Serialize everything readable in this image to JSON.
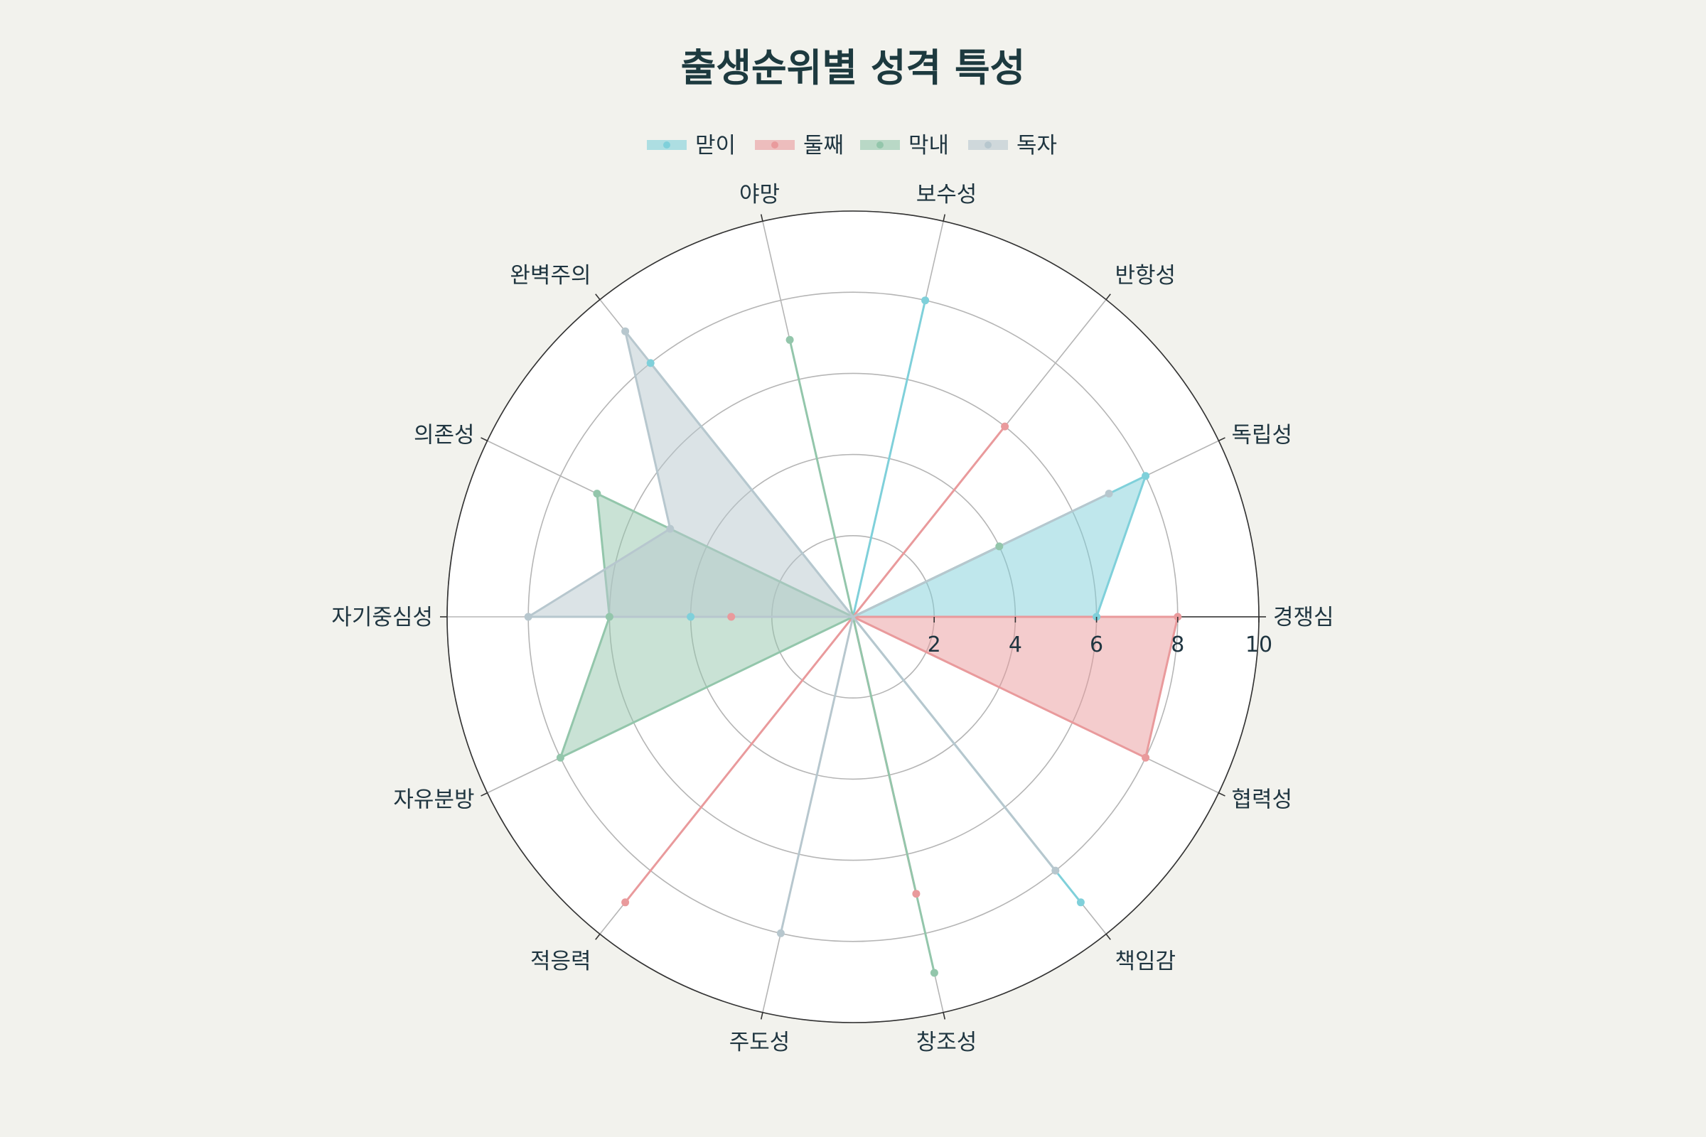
{
  "chart_data": {
    "type": "radar",
    "title": "출생순위별 성격 특성",
    "categories": [
      "경쟁심",
      "독립성",
      "반항성",
      "보수성",
      "야망",
      "완벽주의",
      "의존성",
      "자기중심성",
      "자유분방",
      "적응력",
      "주도성",
      "창조성",
      "책임감",
      "협력성"
    ],
    "radial_ticks": [
      "2",
      "4",
      "6",
      "8",
      "10"
    ],
    "rlim": [
      0,
      10
    ],
    "grid": true,
    "legend_position": "top-center",
    "series": [
      {
        "name": "맏이",
        "color": "#7fd0da",
        "values": [
          6,
          8,
          0,
          8,
          0,
          8,
          0,
          4,
          0,
          0,
          0,
          0,
          9,
          0
        ]
      },
      {
        "name": "둘째",
        "color": "#e99a9c",
        "values": [
          8,
          0,
          6,
          0,
          0,
          0,
          0,
          3,
          0,
          9,
          0,
          7,
          0,
          8
        ]
      },
      {
        "name": "막내",
        "color": "#93c6ab",
        "values": [
          0,
          4,
          0,
          0,
          7,
          0,
          7,
          6,
          8,
          0,
          0,
          9,
          0,
          0
        ]
      },
      {
        "name": "독자",
        "color": "#b7c7ce",
        "values": [
          0,
          7,
          0,
          0,
          0,
          9,
          5,
          8,
          0,
          0,
          8,
          0,
          8,
          0
        ]
      }
    ]
  }
}
